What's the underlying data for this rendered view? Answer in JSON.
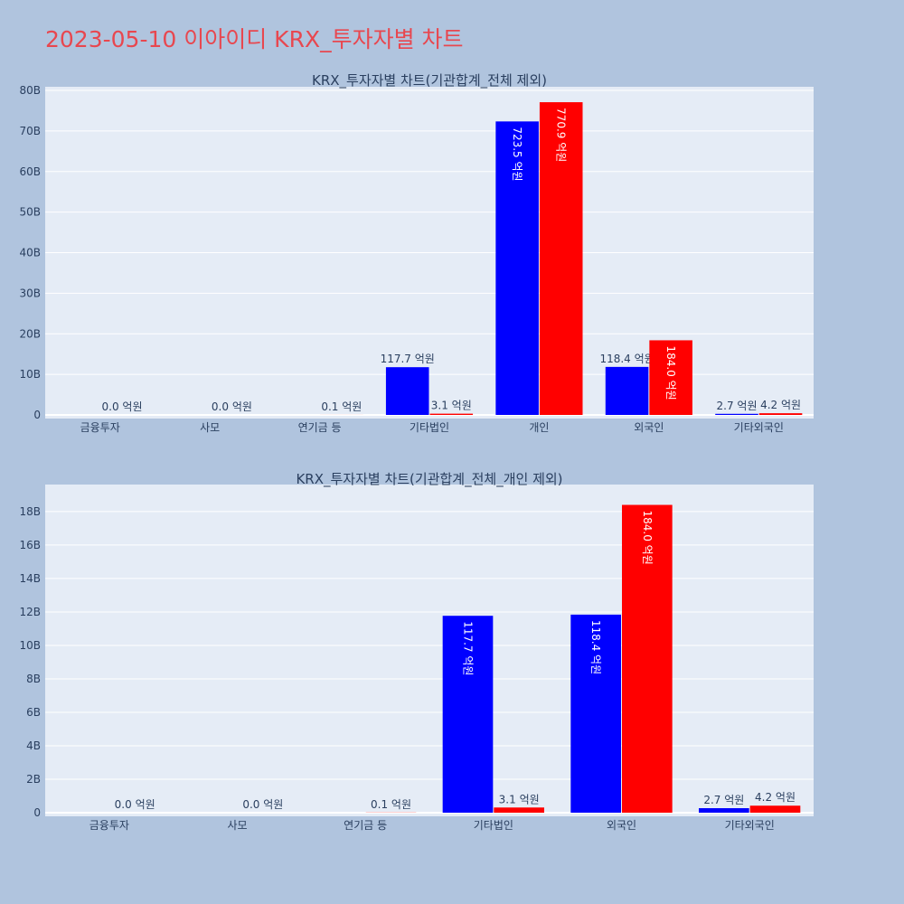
{
  "page": {
    "title": "2023-05-10 이아이디 KRX_투자자별 차트"
  },
  "chart_data": [
    {
      "type": "bar",
      "title": "KRX_투자자별 차트(기관합계_전체 제외)",
      "categories": [
        "금융투자",
        "사모",
        "연기금 등",
        "기타법인",
        "개인",
        "외국인",
        "기타외국인"
      ],
      "ylim": [
        0,
        80
      ],
      "yticks": [
        0,
        10,
        20,
        30,
        40,
        50,
        60,
        70,
        80
      ],
      "ytick_labels": [
        "0",
        "10B",
        "20B",
        "30B",
        "40B",
        "50B",
        "60B",
        "70B",
        "80B"
      ],
      "series": [
        {
          "color": "#0000ff",
          "values": [
            0,
            0,
            0,
            11.77,
            72.35,
            11.84,
            0.27
          ],
          "labels": [
            "",
            "",
            "",
            "117.7 억원",
            "723.5 억원",
            "118.4 억원",
            "2.7 억원"
          ]
        },
        {
          "color": "#ff0000",
          "values": [
            0,
            0,
            0.01,
            0.31,
            77.09,
            18.4,
            0.42
          ],
          "labels": [
            "0.0 억원",
            "0.0 억원",
            "0.1 억원",
            "3.1 억원",
            "770.9 억원",
            "184.0 억원",
            "4.2 억원"
          ]
        }
      ]
    },
    {
      "type": "bar",
      "title": "KRX_투자자별 차트(기관합계_전체_개인 제외)",
      "categories": [
        "금융투자",
        "사모",
        "연기금 등",
        "기타법인",
        "외국인",
        "기타외국인"
      ],
      "ylim": [
        0,
        19.4
      ],
      "yticks": [
        0,
        2,
        4,
        6,
        8,
        10,
        12,
        14,
        16,
        18
      ],
      "ytick_labels": [
        "0",
        "2B",
        "4B",
        "6B",
        "8B",
        "10B",
        "12B",
        "14B",
        "16B",
        "18B"
      ],
      "series": [
        {
          "color": "#0000ff",
          "values": [
            0,
            0,
            0,
            11.77,
            11.84,
            0.27
          ],
          "labels": [
            "",
            "",
            "",
            "117.7 억원",
            "118.4 억원",
            "2.7 억원"
          ]
        },
        {
          "color": "#ff0000",
          "values": [
            0,
            0,
            0.01,
            0.31,
            18.4,
            0.42
          ],
          "labels": [
            "0.0 억원",
            "0.0 억원",
            "0.1 억원",
            "3.1 억원",
            "184.0 억원",
            "4.2 억원"
          ]
        }
      ]
    }
  ]
}
